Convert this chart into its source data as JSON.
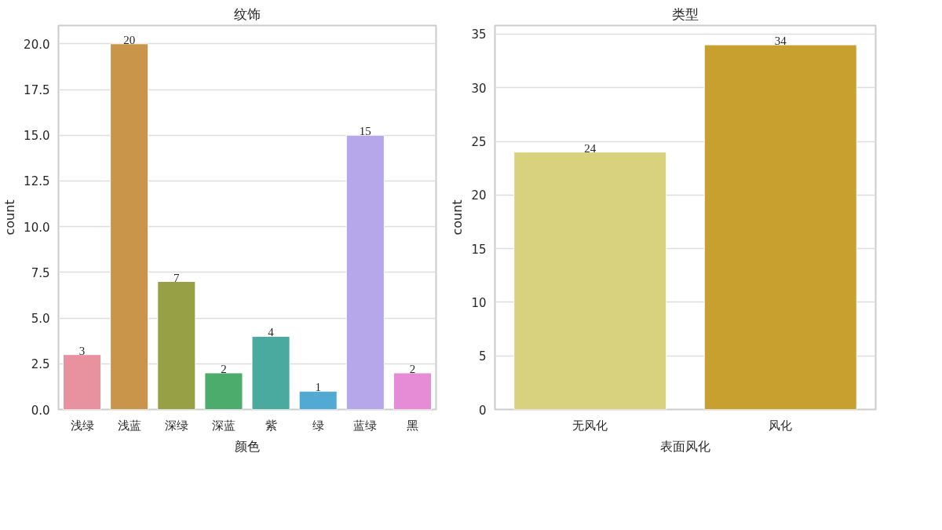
{
  "chart_data": [
    {
      "type": "bar",
      "title": "纹饰",
      "xlabel": "颜色",
      "ylabel": "count",
      "categories": [
        "浅绿",
        "浅蓝",
        "深绿",
        "深蓝",
        "紫",
        "绿",
        "蓝绿",
        "黑"
      ],
      "values": [
        3,
        20,
        7,
        2,
        4,
        1,
        15,
        2
      ],
      "colors": [
        "#e8919f",
        "#c8954a",
        "#98a046",
        "#4cac6c",
        "#4aaa9f",
        "#52a9d3",
        "#b6a6ea",
        "#e68bd6"
      ],
      "ylim": [
        0,
        21
      ],
      "yticks": [
        {
          "value": 0,
          "label": "0.0"
        },
        {
          "value": 2.5,
          "label": "2.5"
        },
        {
          "value": 5,
          "label": "5.0"
        },
        {
          "value": 7.5,
          "label": "7.5"
        },
        {
          "value": 10,
          "label": "10.0"
        },
        {
          "value": 12.5,
          "label": "12.5"
        },
        {
          "value": 15,
          "label": "15.0"
        },
        {
          "value": 17.5,
          "label": "17.5"
        },
        {
          "value": 20,
          "label": "20.0"
        }
      ],
      "grid": "y",
      "data_labels": true
    },
    {
      "type": "bar",
      "title": "类型",
      "xlabel": "表面风化",
      "ylabel": "count",
      "categories": [
        "无风化",
        "风化"
      ],
      "values": [
        24,
        34
      ],
      "colors": [
        "#d8d27f",
        "#c8a030"
      ],
      "ylim": [
        0,
        35.8
      ],
      "yticks": [
        0,
        5,
        10,
        15,
        20,
        25,
        30,
        35
      ],
      "grid": "y",
      "data_labels": true
    }
  ]
}
